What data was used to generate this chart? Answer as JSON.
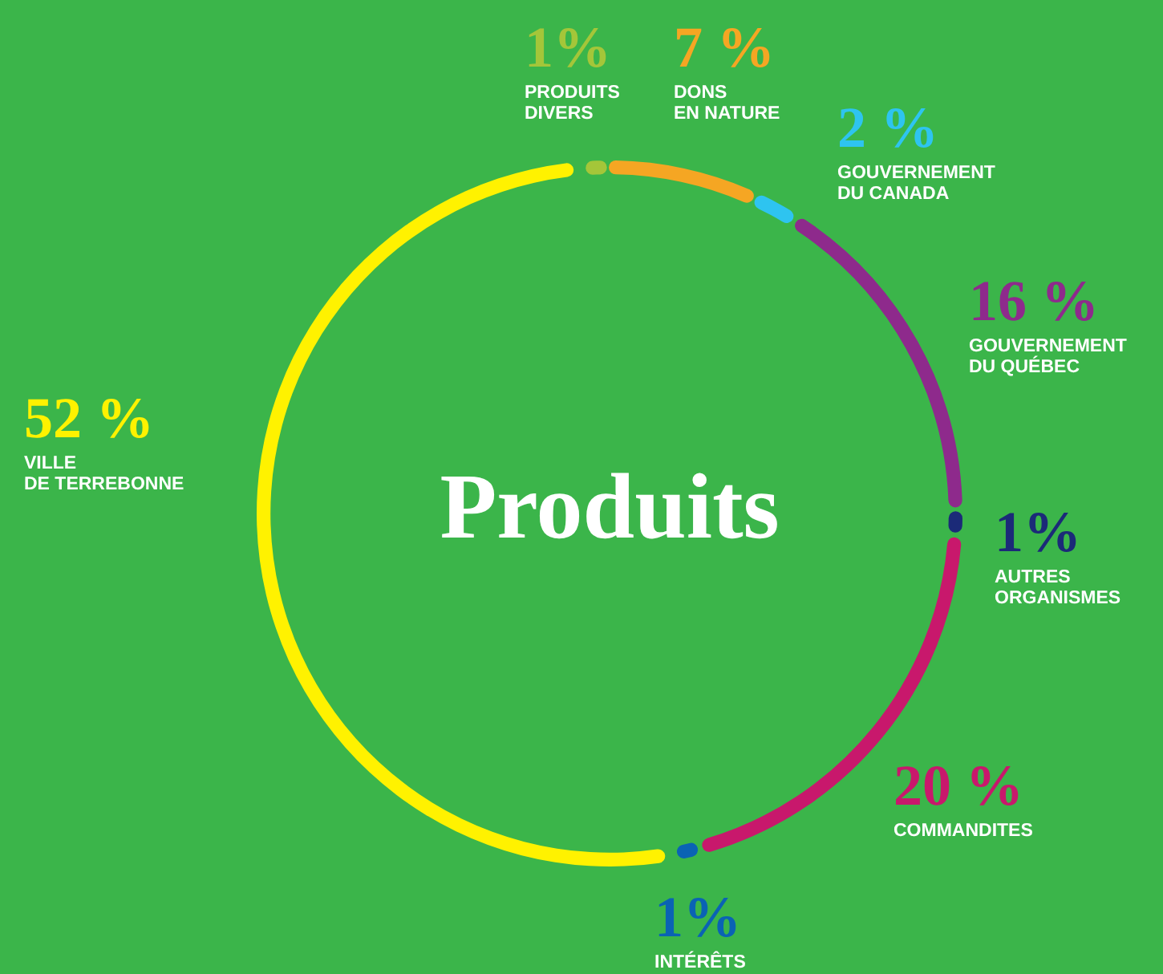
{
  "chart_data": {
    "type": "donut",
    "title": "Produits",
    "categories": [
      "PRODUITS DIVERS",
      "DONS EN NATURE",
      "GOUVERNEMENT DU CANADA",
      "GOUVERNEMENT DU QUÉBEC",
      "AUTRES ORGANISMES",
      "COMMANDITES",
      "INTÉRÊTS",
      "VILLE DE TERREBONNE"
    ],
    "values": [
      1,
      7,
      2,
      16,
      1,
      20,
      1,
      52
    ],
    "value_labels": [
      "1%",
      "7 %",
      "2 %",
      "16 %",
      "1%",
      "20 %",
      "1%",
      "52 %"
    ],
    "colors": [
      "#a4c639",
      "#f5a623",
      "#2ec4f0",
      "#8e2a8c",
      "#1b2a78",
      "#c8186c",
      "#0a63b4",
      "#fff200"
    ],
    "legend": false
  }
}
